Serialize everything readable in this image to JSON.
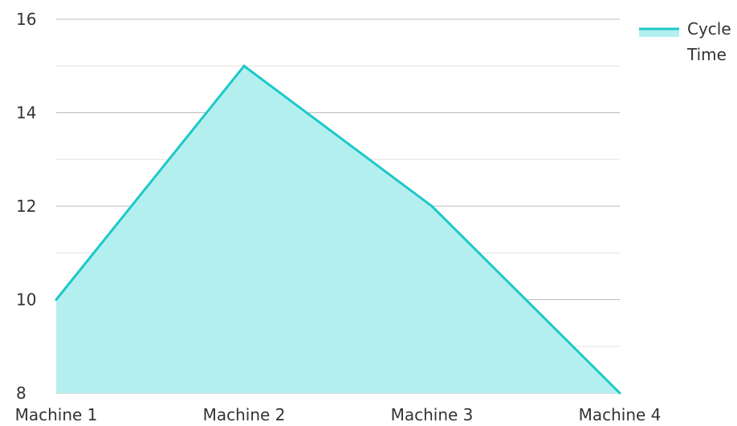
{
  "chart_data": {
    "type": "area",
    "categories": [
      "Machine 1",
      "Machine 2",
      "Machine 3",
      "Machine 4"
    ],
    "series": [
      {
        "name": "Cycle Time",
        "values": [
          10,
          15,
          12,
          8
        ]
      }
    ],
    "ylim": [
      8,
      16
    ],
    "yticks": [
      "8",
      "10",
      "12",
      "14",
      "16"
    ],
    "grid": true,
    "legend_position": "top-right",
    "legend_label_lines": [
      "Cycle",
      "Time"
    ],
    "colors": {
      "line": "#1ec8c8",
      "fill": "#b3efef",
      "grid_major": "#bbbbbb",
      "grid_minor": "#e2e2e2"
    }
  }
}
